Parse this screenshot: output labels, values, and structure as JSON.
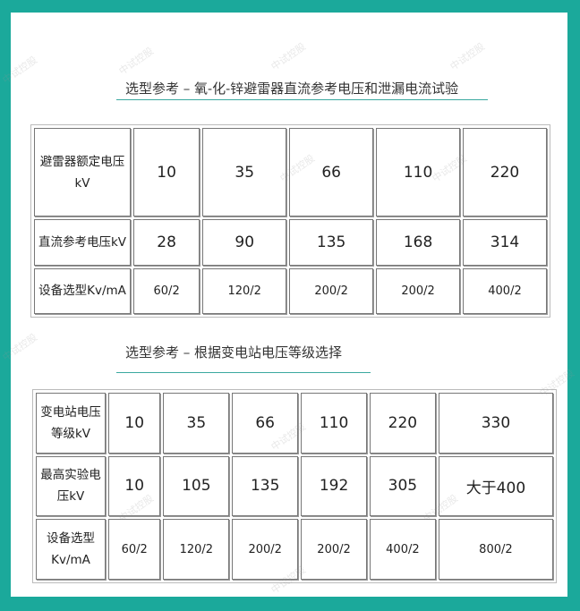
{
  "watermark": "中试控股",
  "colors": {
    "frame": "#1ba99b",
    "underline": "#3aa9a0"
  },
  "section1": {
    "title": "选型参考 – 氧-化-锌避雷器直流参考电压和泄漏电流试验",
    "rows": [
      {
        "label": "避雷器额定电压kV",
        "values": [
          "10",
          "35",
          "66",
          "110",
          "220"
        ]
      },
      {
        "label": "直流参考电压kV",
        "values": [
          "28",
          "90",
          "135",
          "168",
          "314"
        ]
      },
      {
        "label": "设备选型Kv/mA",
        "values": [
          "60/2",
          "120/2",
          "200/2",
          "200/2",
          "400/2"
        ]
      }
    ]
  },
  "section2": {
    "title": "选型参考 – 根据变电站电压等级选择",
    "rows": [
      {
        "label": "变电站电压等级kV",
        "values": [
          "10",
          "35",
          "66",
          "110",
          "220",
          "330"
        ]
      },
      {
        "label": "最高实验电压kV",
        "values": [
          "10",
          "105",
          "135",
          "192",
          "305",
          "大于400"
        ]
      },
      {
        "label": "设备选型Kv/mA",
        "values": [
          "60/2",
          "120/2",
          "200/2",
          "200/2",
          "400/2",
          "800/2"
        ]
      }
    ]
  }
}
